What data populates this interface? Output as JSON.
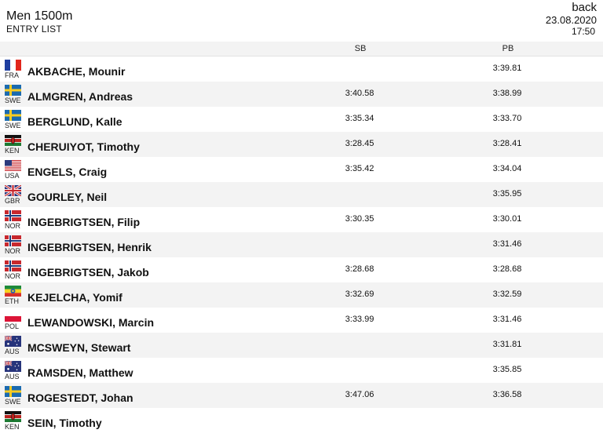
{
  "header": {
    "title": "Men 1500m",
    "subtitle": "ENTRY LIST",
    "back_label": "back",
    "date": "23.08.2020",
    "time": "17:50"
  },
  "columns": {
    "sb": "SB",
    "pb": "PB"
  },
  "entries": [
    {
      "name": "AKBACHE, Mounir",
      "country": "FRA",
      "flag": "france-flag-icon",
      "sb": "",
      "pb": "3:39.81"
    },
    {
      "name": "ALMGREN, Andreas",
      "country": "SWE",
      "flag": "sweden-flag-icon",
      "sb": "3:40.58",
      "pb": "3:38.99"
    },
    {
      "name": "BERGLUND, Kalle",
      "country": "SWE",
      "flag": "sweden-flag-icon",
      "sb": "3:35.34",
      "pb": "3:33.70"
    },
    {
      "name": "CHERUIYOT, Timothy",
      "country": "KEN",
      "flag": "kenya-flag-icon",
      "sb": "3:28.45",
      "pb": "3:28.41"
    },
    {
      "name": "ENGELS, Craig",
      "country": "USA",
      "flag": "usa-flag-icon",
      "sb": "3:35.42",
      "pb": "3:34.04"
    },
    {
      "name": "GOURLEY, Neil",
      "country": "GBR",
      "flag": "uk-flag-icon",
      "sb": "",
      "pb": "3:35.95"
    },
    {
      "name": "INGEBRIGTSEN, Filip",
      "country": "NOR",
      "flag": "norway-flag-icon",
      "sb": "3:30.35",
      "pb": "3:30.01"
    },
    {
      "name": "INGEBRIGTSEN, Henrik",
      "country": "NOR",
      "flag": "norway-flag-icon",
      "sb": "",
      "pb": "3:31.46"
    },
    {
      "name": "INGEBRIGTSEN, Jakob",
      "country": "NOR",
      "flag": "norway-flag-icon",
      "sb": "3:28.68",
      "pb": "3:28.68"
    },
    {
      "name": "KEJELCHA, Yomif",
      "country": "ETH",
      "flag": "ethiopia-flag-icon",
      "sb": "3:32.69",
      "pb": "3:32.59"
    },
    {
      "name": "LEWANDOWSKI, Marcin",
      "country": "POL",
      "flag": "poland-flag-icon",
      "sb": "3:33.99",
      "pb": "3:31.46"
    },
    {
      "name": "MCSWEYN, Stewart",
      "country": "AUS",
      "flag": "australia-flag-icon",
      "sb": "",
      "pb": "3:31.81"
    },
    {
      "name": "RAMSDEN, Matthew",
      "country": "AUS",
      "flag": "australia-flag-icon",
      "sb": "",
      "pb": "3:35.85"
    },
    {
      "name": "ROGESTEDT, Johan",
      "country": "SWE",
      "flag": "sweden-flag-icon",
      "sb": "3:47.06",
      "pb": "3:36.58"
    },
    {
      "name": "SEIN, Timothy",
      "country": "KEN",
      "flag": "kenya-flag-icon",
      "sb": "",
      "pb": ""
    }
  ]
}
